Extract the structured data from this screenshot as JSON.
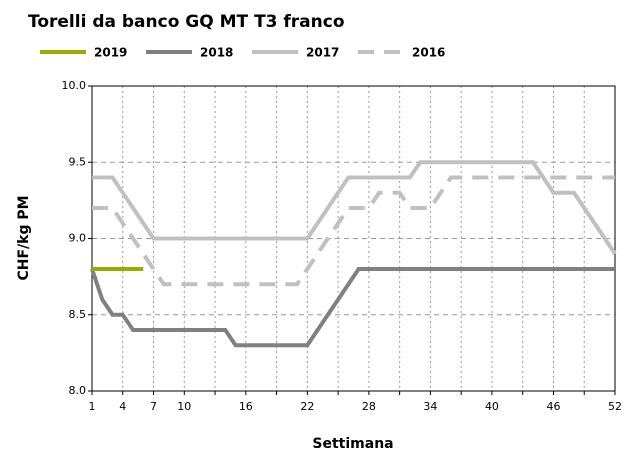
{
  "chart_data": {
    "type": "line",
    "title": "Torelli da banco GQ MT T3 franco",
    "x_label": "Settimana",
    "y_label": "CHF/kg PM",
    "legend": "top",
    "grid": true,
    "x": [
      1,
      2,
      3,
      4,
      5,
      6,
      7,
      8,
      9,
      10,
      11,
      12,
      13,
      14,
      15,
      16,
      17,
      18,
      19,
      20,
      21,
      22,
      23,
      24,
      25,
      26,
      27,
      28,
      29,
      30,
      31,
      32,
      33,
      34,
      35,
      36,
      37,
      38,
      39,
      40,
      41,
      42,
      43,
      44,
      45,
      46,
      47,
      48,
      49,
      50,
      51,
      52
    ],
    "xlim": [
      1,
      52
    ],
    "xticks": [
      1,
      4,
      7,
      10,
      16,
      22,
      28,
      34,
      40,
      46,
      52
    ],
    "xminorticks": [
      13,
      19,
      25,
      31,
      37,
      43,
      49
    ],
    "ylim": [
      8.0,
      10.0
    ],
    "yticks": [
      {
        "value": 8.0,
        "label": "8.0"
      },
      8.5,
      {
        "value": 9.0,
        "label": "9.0"
      },
      9.5,
      {
        "value": 10.0,
        "label": "10.0"
      }
    ],
    "series": [
      {
        "name": "2019",
        "color": "#9aab00",
        "dashed": false,
        "values": [
          8.8,
          8.8,
          8.8,
          8.8,
          8.8,
          8.8,
          null,
          null,
          null,
          null,
          null,
          null,
          null,
          null,
          null,
          null,
          null,
          null,
          null,
          null,
          null,
          null,
          null,
          null,
          null,
          null,
          null,
          null,
          null,
          null,
          null,
          null,
          null,
          null,
          null,
          null,
          null,
          null,
          null,
          null,
          null,
          null,
          null,
          null,
          null,
          null,
          null,
          null,
          null,
          null,
          null,
          null
        ]
      },
      {
        "name": "2018",
        "color": "#808080",
        "dashed": false,
        "values": [
          8.8,
          8.6,
          8.5,
          8.5,
          8.4,
          8.4,
          8.4,
          8.4,
          8.4,
          8.4,
          8.4,
          8.4,
          8.4,
          8.4,
          8.3,
          8.3,
          8.3,
          8.3,
          8.3,
          8.3,
          8.3,
          8.3,
          8.4,
          8.5,
          8.6,
          8.7,
          8.8,
          8.8,
          8.8,
          8.8,
          8.8,
          8.8,
          8.8,
          8.8,
          8.8,
          8.8,
          8.8,
          8.8,
          8.8,
          8.8,
          8.8,
          8.8,
          8.8,
          8.8,
          8.8,
          8.8,
          8.8,
          8.8,
          8.8,
          8.8,
          8.8,
          8.8
        ]
      },
      {
        "name": "2017",
        "color": "#c0c0c0",
        "dashed": false,
        "values": [
          9.4,
          9.4,
          9.4,
          9.3,
          9.2,
          9.1,
          9.0,
          9.0,
          9.0,
          9.0,
          9.0,
          9.0,
          9.0,
          9.0,
          9.0,
          9.0,
          9.0,
          9.0,
          9.0,
          9.0,
          9.0,
          9.0,
          9.1,
          9.2,
          9.3,
          9.4,
          9.4,
          9.4,
          9.4,
          9.4,
          9.4,
          9.4,
          9.5,
          9.5,
          9.5,
          9.5,
          9.5,
          9.5,
          9.5,
          9.5,
          9.5,
          9.5,
          9.5,
          9.5,
          9.4,
          9.3,
          9.3,
          9.3,
          9.2,
          9.1,
          9.0,
          8.9
        ]
      },
      {
        "name": "2016",
        "color": "#c0c0c0",
        "dashed": true,
        "values": [
          9.2,
          9.2,
          9.2,
          9.1,
          9.0,
          8.9,
          8.8,
          8.7,
          8.7,
          8.7,
          8.7,
          8.7,
          8.7,
          8.7,
          8.7,
          8.7,
          8.7,
          8.7,
          8.7,
          8.7,
          8.7,
          8.8,
          8.9,
          9.0,
          9.1,
          9.2,
          9.2,
          9.2,
          9.3,
          9.3,
          9.3,
          9.2,
          9.2,
          9.2,
          9.3,
          9.4,
          9.4,
          9.4,
          9.4,
          9.4,
          9.4,
          9.4,
          9.4,
          9.4,
          9.4,
          9.4,
          9.4,
          9.4,
          9.4,
          9.4,
          9.4,
          9.4
        ]
      }
    ]
  }
}
